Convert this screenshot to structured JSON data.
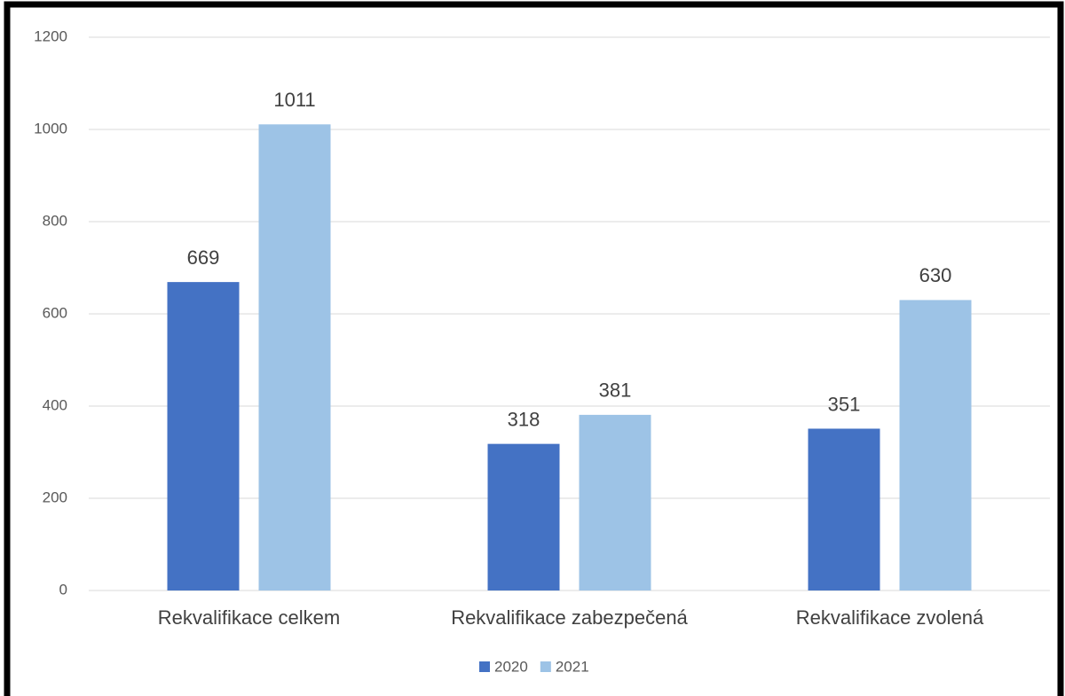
{
  "chart_data": {
    "type": "bar",
    "categories": [
      "Rekvalifikace celkem",
      "Rekvalifikace zabezpečená",
      "Rekvalifikace zvolená"
    ],
    "series": [
      {
        "name": "2020",
        "color": "#4472c4",
        "values": [
          669,
          318,
          351
        ]
      },
      {
        "name": "2021",
        "color": "#9dc3e6",
        "values": [
          1011,
          381,
          630
        ]
      }
    ],
    "ylim": [
      0,
      1200
    ],
    "yticks": [
      0,
      200,
      400,
      600,
      800,
      1000,
      1200
    ],
    "grid": true,
    "legend": "bottom"
  }
}
